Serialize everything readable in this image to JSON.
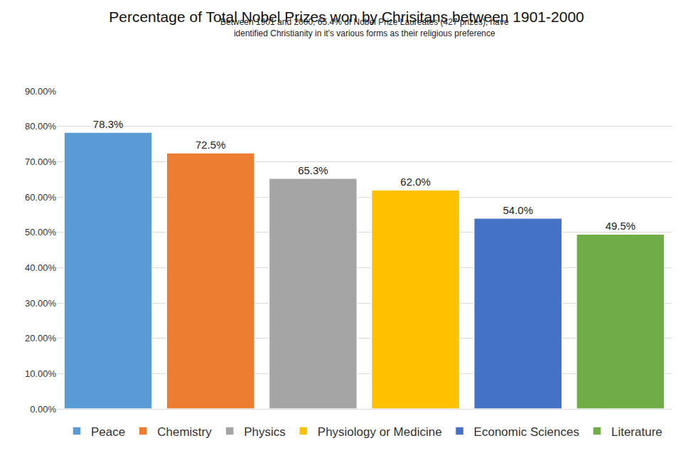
{
  "chart_data": {
    "type": "bar",
    "title": "Percentage of Total Nobel Prizes won by Chrisitans between 1901-2000",
    "subtitle": "Between 1901 and 2000, 65.4% of Nobel Prize Laureates (427 prizes), have identified Christianity in it's various forms as their religious preference",
    "categories": [
      "Peace",
      "Chemistry",
      "Physics",
      "Physiology or Medicine",
      "Economic Sciences",
      "Literature"
    ],
    "values": [
      78.3,
      72.5,
      65.3,
      62.0,
      54.0,
      49.5
    ],
    "value_labels": [
      "78.3%",
      "72.5%",
      "65.3%",
      "62.0%",
      "54.0%",
      "49.5%"
    ],
    "colors": [
      "#5b9bd5",
      "#ed7d31",
      "#a5a5a5",
      "#ffc000",
      "#4472c4",
      "#70ad47"
    ],
    "ylim": [
      0,
      90
    ],
    "yticks": [
      {
        "value": 0,
        "label": "0.00%"
      },
      {
        "value": 10,
        "label": "10.00%"
      },
      {
        "value": 20,
        "label": "20.00%"
      },
      {
        "value": 30,
        "label": "30.00%"
      },
      {
        "value": 40,
        "label": "40.00%"
      },
      {
        "value": 50,
        "label": "50.00%"
      },
      {
        "value": 60,
        "label": "60.00%"
      },
      {
        "value": 70,
        "label": "70.00%"
      },
      {
        "value": 80,
        "label": "80.00%"
      },
      {
        "value": 90,
        "label": "90.00%"
      }
    ],
    "grid": true,
    "data_labels": true,
    "legend": "bottom",
    "tick_labels": "y"
  }
}
